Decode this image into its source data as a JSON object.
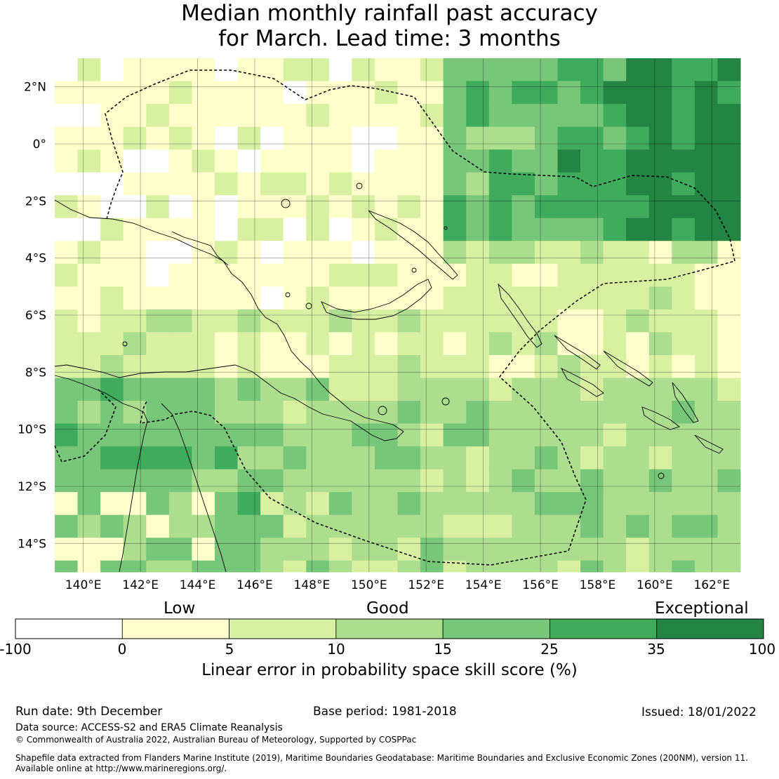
{
  "title": {
    "line1": "Median monthly rainfall past accuracy",
    "line2": "for March. Lead time: 3 months"
  },
  "map": {
    "lat_labels": [
      {
        "value": 2,
        "text": "2°N"
      },
      {
        "value": 0,
        "text": "0°"
      },
      {
        "value": -2,
        "text": "2°S"
      },
      {
        "value": -4,
        "text": "4°S"
      },
      {
        "value": -6,
        "text": "6°S"
      },
      {
        "value": -8,
        "text": "8°S"
      },
      {
        "value": -10,
        "text": "10°S"
      },
      {
        "value": -12,
        "text": "12°S"
      },
      {
        "value": -14,
        "text": "14°S"
      }
    ],
    "lon_labels": [
      {
        "value": 140,
        "text": "140°E"
      },
      {
        "value": 142,
        "text": "142°E"
      },
      {
        "value": 144,
        "text": "144°E"
      },
      {
        "value": 146,
        "text": "146°E"
      },
      {
        "value": 148,
        "text": "148°E"
      },
      {
        "value": 150,
        "text": "150°E"
      },
      {
        "value": 152,
        "text": "152°E"
      },
      {
        "value": 154,
        "text": "154°E"
      },
      {
        "value": 156,
        "text": "156°E"
      },
      {
        "value": 158,
        "text": "158°E"
      },
      {
        "value": 160,
        "text": "160°E"
      },
      {
        "value": 162,
        "text": "162°E"
      }
    ],
    "lon_range": [
      139,
      163
    ],
    "lat_range": [
      -15,
      3
    ],
    "cell_size_deg": 0.8
  },
  "colorbar": {
    "categories": {
      "low": "Low",
      "good": "Good",
      "exceptional": "Exceptional"
    },
    "ticks": [
      "-100",
      "0",
      "5",
      "10",
      "15",
      "25",
      "35",
      "100"
    ],
    "colors": [
      "#ffffff",
      "#ffffcc",
      "#d9f0a3",
      "#addd8e",
      "#78c679",
      "#41ab5d",
      "#238443"
    ],
    "label": "Linear error in probability space skill score (%)"
  },
  "footer": {
    "run_date": "Run date: 9th December",
    "base_period": "Base period: 1981-2018",
    "issued": "Issued: 18/01/2022",
    "data_source": "Data source: ACCESS-S2 and ERA5 Climate Reanalysis",
    "copyright": "© Commonwealth of Australia 2022, Australian Bureau of Meteorology, Supported by COSPPac",
    "shapefile_line1": "Shapefile data extracted from Flanders Marine Institute (2019), Maritime Boundaries Geodatabase: Maritime Boundaries and Exclusive Economic Zones (200NM), version 11.",
    "shapefile_line2": "Available online at http://www.marineregions.org/."
  }
}
